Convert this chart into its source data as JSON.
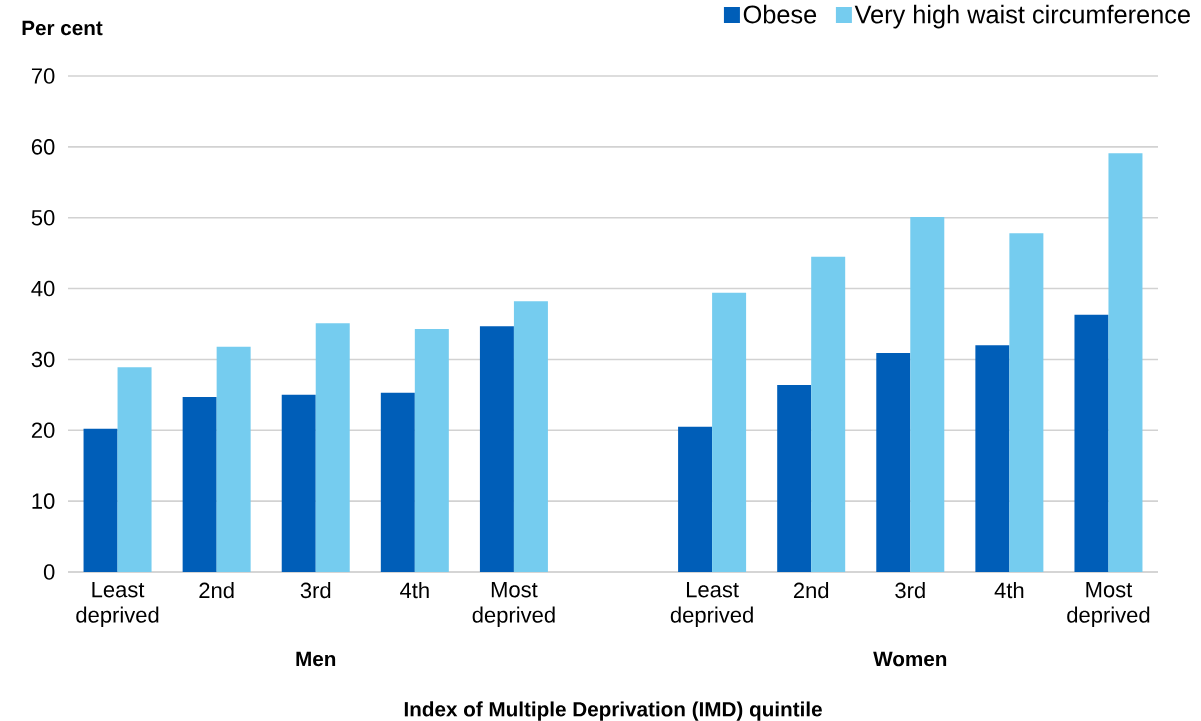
{
  "chart_data": {
    "type": "bar",
    "ylabel": "Per cent",
    "xlabel": "Index of Multiple Deprivation (IMD) quintile",
    "categories": [
      "Least deprived",
      "2nd",
      "3rd",
      "4th",
      "Most deprived",
      null,
      "Least deprived",
      "2nd",
      "3rd",
      "4th",
      "Most deprived"
    ],
    "series": [
      {
        "name": "Obese",
        "color": "#005eb8",
        "values": [
          20.2,
          24.7,
          25.0,
          25.3,
          34.7,
          null,
          20.5,
          26.4,
          30.9,
          32.0,
          36.3
        ]
      },
      {
        "name": "Very high waist circumference",
        "color": "#75ccef",
        "values": [
          28.9,
          31.8,
          35.1,
          34.3,
          38.2,
          null,
          39.4,
          44.5,
          50.1,
          47.8,
          59.1
        ]
      }
    ],
    "annotations": [
      "Men",
      "Women"
    ],
    "ylim": [
      0,
      70
    ],
    "yticks": [
      0,
      10,
      20,
      30,
      40,
      50,
      60,
      70
    ],
    "grid": "y",
    "legend": "top right"
  }
}
